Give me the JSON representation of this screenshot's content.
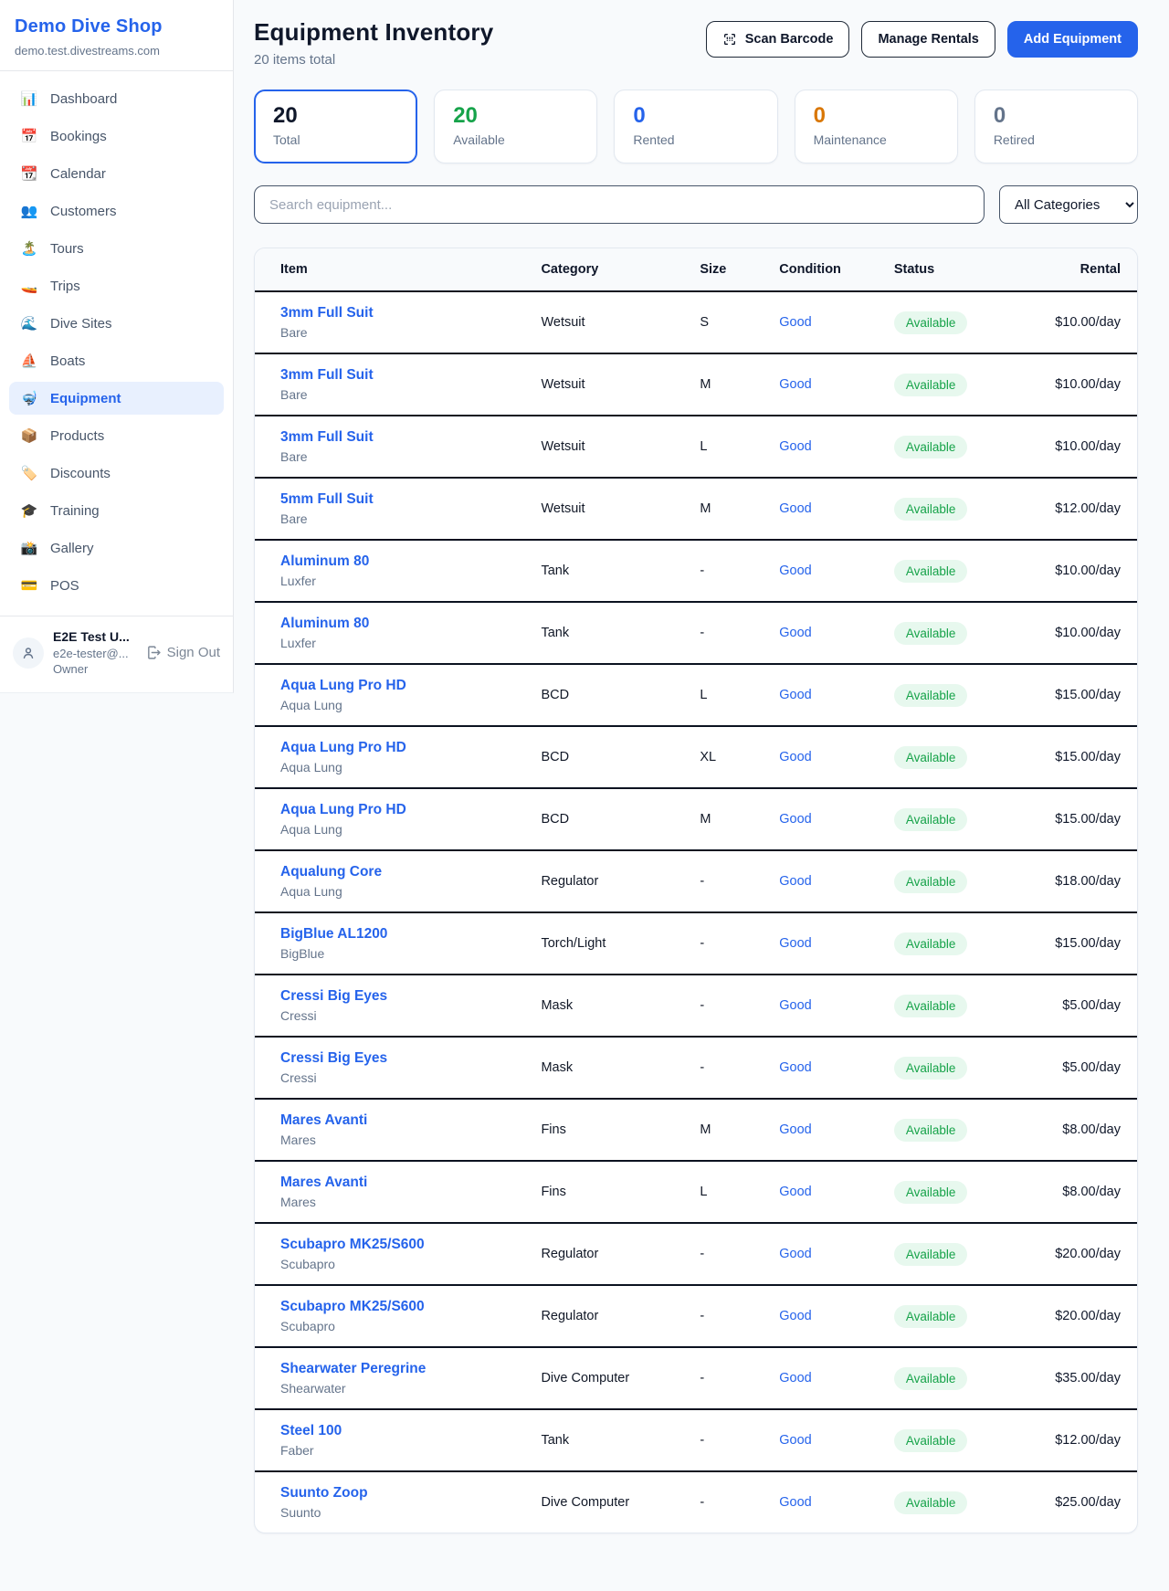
{
  "sidebar": {
    "brand": {
      "name": "Demo Dive Shop",
      "domain": "demo.test.divestreams.com"
    },
    "nav": [
      {
        "icon": "📊",
        "icon_name": "dashboard-chart-icon",
        "label": "Dashboard",
        "active": false
      },
      {
        "icon": "📅",
        "icon_name": "bookings-calendar-icon",
        "label": "Bookings",
        "active": false
      },
      {
        "icon": "📆",
        "icon_name": "calendar-icon",
        "label": "Calendar",
        "active": false
      },
      {
        "icon": "👥",
        "icon_name": "customers-people-icon",
        "label": "Customers",
        "active": false
      },
      {
        "icon": "🏝️",
        "icon_name": "tours-island-icon",
        "label": "Tours",
        "active": false
      },
      {
        "icon": "🚤",
        "icon_name": "trips-boat-icon",
        "label": "Trips",
        "active": false
      },
      {
        "icon": "🌊",
        "icon_name": "dive-sites-wave-icon",
        "label": "Dive Sites",
        "active": false
      },
      {
        "icon": "⛵",
        "icon_name": "boats-sailboat-icon",
        "label": "Boats",
        "active": false
      },
      {
        "icon": "🤿",
        "icon_name": "equipment-mask-icon",
        "label": "Equipment",
        "active": true
      },
      {
        "icon": "📦",
        "icon_name": "products-package-icon",
        "label": "Products",
        "active": false
      },
      {
        "icon": "🏷️",
        "icon_name": "discounts-tag-icon",
        "label": "Discounts",
        "active": false
      },
      {
        "icon": "🎓",
        "icon_name": "training-cap-icon",
        "label": "Training",
        "active": false
      },
      {
        "icon": "📸",
        "icon_name": "gallery-camera-icon",
        "label": "Gallery",
        "active": false
      },
      {
        "icon": "💳",
        "icon_name": "pos-card-icon",
        "label": "POS",
        "active": false
      }
    ],
    "user": {
      "name": "E2E Test U...",
      "email": "e2e-tester@...",
      "role": "Owner",
      "sign_out_label": "Sign Out"
    }
  },
  "header": {
    "title": "Equipment Inventory",
    "subtitle": "20 items total",
    "scan_button": "Scan Barcode",
    "manage_button": "Manage Rentals",
    "add_button": "Add Equipment"
  },
  "stats": [
    {
      "value": "20",
      "label": "Total",
      "color": "#0f172a",
      "selected": true
    },
    {
      "value": "20",
      "label": "Available",
      "color": "#16a34a",
      "selected": false
    },
    {
      "value": "0",
      "label": "Rented",
      "color": "#2563eb",
      "selected": false
    },
    {
      "value": "0",
      "label": "Maintenance",
      "color": "#d97706",
      "selected": false
    },
    {
      "value": "0",
      "label": "Retired",
      "color": "#64748b",
      "selected": false
    }
  ],
  "filters": {
    "search_placeholder": "Search equipment...",
    "category_selected": "All Categories"
  },
  "table": {
    "columns": [
      "Item",
      "Category",
      "Size",
      "Condition",
      "Status",
      "Rental"
    ],
    "rows": [
      {
        "name": "3mm Full Suit",
        "brand": "Bare",
        "category": "Wetsuit",
        "size": "S",
        "condition": "Good",
        "status": "Available",
        "rental": "$10.00/day"
      },
      {
        "name": "3mm Full Suit",
        "brand": "Bare",
        "category": "Wetsuit",
        "size": "M",
        "condition": "Good",
        "status": "Available",
        "rental": "$10.00/day"
      },
      {
        "name": "3mm Full Suit",
        "brand": "Bare",
        "category": "Wetsuit",
        "size": "L",
        "condition": "Good",
        "status": "Available",
        "rental": "$10.00/day"
      },
      {
        "name": "5mm Full Suit",
        "brand": "Bare",
        "category": "Wetsuit",
        "size": "M",
        "condition": "Good",
        "status": "Available",
        "rental": "$12.00/day"
      },
      {
        "name": "Aluminum 80",
        "brand": "Luxfer",
        "category": "Tank",
        "size": "-",
        "condition": "Good",
        "status": "Available",
        "rental": "$10.00/day"
      },
      {
        "name": "Aluminum 80",
        "brand": "Luxfer",
        "category": "Tank",
        "size": "-",
        "condition": "Good",
        "status": "Available",
        "rental": "$10.00/day"
      },
      {
        "name": "Aqua Lung Pro HD",
        "brand": "Aqua Lung",
        "category": "BCD",
        "size": "L",
        "condition": "Good",
        "status": "Available",
        "rental": "$15.00/day"
      },
      {
        "name": "Aqua Lung Pro HD",
        "brand": "Aqua Lung",
        "category": "BCD",
        "size": "XL",
        "condition": "Good",
        "status": "Available",
        "rental": "$15.00/day"
      },
      {
        "name": "Aqua Lung Pro HD",
        "brand": "Aqua Lung",
        "category": "BCD",
        "size": "M",
        "condition": "Good",
        "status": "Available",
        "rental": "$15.00/day"
      },
      {
        "name": "Aqualung Core",
        "brand": "Aqua Lung",
        "category": "Regulator",
        "size": "-",
        "condition": "Good",
        "status": "Available",
        "rental": "$18.00/day"
      },
      {
        "name": "BigBlue AL1200",
        "brand": "BigBlue",
        "category": "Torch/Light",
        "size": "-",
        "condition": "Good",
        "status": "Available",
        "rental": "$15.00/day"
      },
      {
        "name": "Cressi Big Eyes",
        "brand": "Cressi",
        "category": "Mask",
        "size": "-",
        "condition": "Good",
        "status": "Available",
        "rental": "$5.00/day"
      },
      {
        "name": "Cressi Big Eyes",
        "brand": "Cressi",
        "category": "Mask",
        "size": "-",
        "condition": "Good",
        "status": "Available",
        "rental": "$5.00/day"
      },
      {
        "name": "Mares Avanti",
        "brand": "Mares",
        "category": "Fins",
        "size": "M",
        "condition": "Good",
        "status": "Available",
        "rental": "$8.00/day"
      },
      {
        "name": "Mares Avanti",
        "brand": "Mares",
        "category": "Fins",
        "size": "L",
        "condition": "Good",
        "status": "Available",
        "rental": "$8.00/day"
      },
      {
        "name": "Scubapro MK25/S600",
        "brand": "Scubapro",
        "category": "Regulator",
        "size": "-",
        "condition": "Good",
        "status": "Available",
        "rental": "$20.00/day"
      },
      {
        "name": "Scubapro MK25/S600",
        "brand": "Scubapro",
        "category": "Regulator",
        "size": "-",
        "condition": "Good",
        "status": "Available",
        "rental": "$20.00/day"
      },
      {
        "name": "Shearwater Peregrine",
        "brand": "Shearwater",
        "category": "Dive Computer",
        "size": "-",
        "condition": "Good",
        "status": "Available",
        "rental": "$35.00/day"
      },
      {
        "name": "Steel 100",
        "brand": "Faber",
        "category": "Tank",
        "size": "-",
        "condition": "Good",
        "status": "Available",
        "rental": "$12.00/day"
      },
      {
        "name": "Suunto Zoop",
        "brand": "Suunto",
        "category": "Dive Computer",
        "size": "-",
        "condition": "Good",
        "status": "Available",
        "rental": "$25.00/day"
      }
    ]
  },
  "colors": {
    "brand_blue": "#2563eb",
    "available_green": "#16a34a",
    "available_badge_bg": "#e7f8ee",
    "maintenance_orange": "#d97706",
    "retired_gray": "#64748b",
    "page_bg": "#f8fafc",
    "row_separator": "#0b1220"
  }
}
